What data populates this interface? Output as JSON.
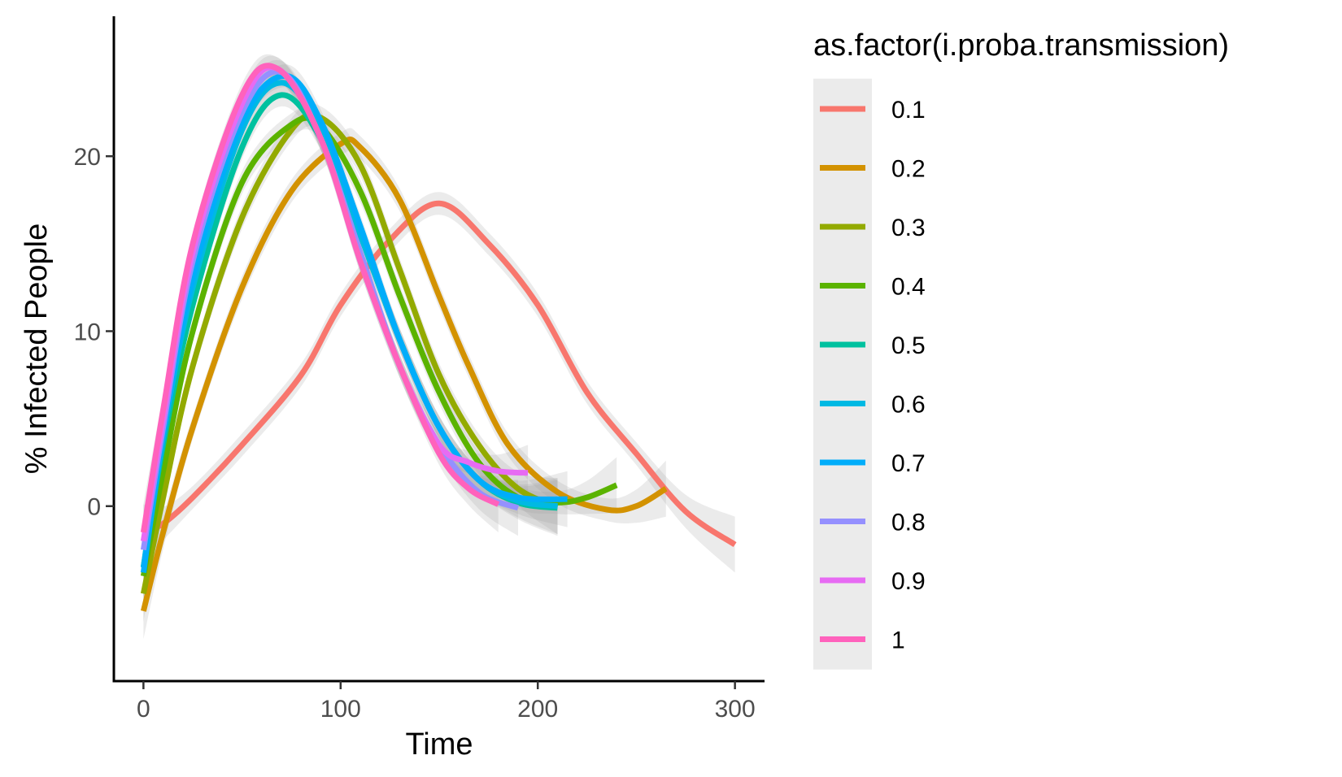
{
  "chart_data": {
    "type": "line",
    "title": "",
    "xlabel": "Time",
    "ylabel": "% Infected People",
    "xlim": [
      -15,
      315
    ],
    "ylim": [
      -10,
      28
    ],
    "xticks": [
      0,
      100,
      200,
      300
    ],
    "yticks": [
      0,
      10,
      20
    ],
    "xtick_labels": [
      "0",
      "100",
      "200",
      "300"
    ],
    "ytick_labels": [
      "0",
      "10",
      "20"
    ],
    "grid": false,
    "confidence_band": true,
    "legend": {
      "title": "as.factor(i.proba.transmission)",
      "position": "right"
    },
    "series": [
      {
        "name": "0.1",
        "color": "#F8766D",
        "x": [
          0,
          10,
          25,
          50,
          80,
          100,
          125,
          150,
          175,
          200,
          225,
          250,
          275,
          300
        ],
        "y": [
          -1.5,
          -1.0,
          0.5,
          3.5,
          7.5,
          11.5,
          15.2,
          17.3,
          15.0,
          11.5,
          6.5,
          3.0,
          -0.3,
          -2.2
        ]
      },
      {
        "name": "0.2",
        "color": "#D39200",
        "x": [
          0,
          10,
          25,
          50,
          75,
          100,
          110,
          130,
          150,
          165,
          185,
          210,
          235,
          250,
          265
        ],
        "y": [
          -6.0,
          -1.5,
          4.5,
          12.5,
          18.0,
          20.7,
          20.5,
          17.5,
          12.0,
          8.0,
          3.5,
          0.8,
          -0.2,
          0.0,
          1.0
        ]
      },
      {
        "name": "0.3",
        "color": "#93AA00",
        "x": [
          0,
          10,
          25,
          50,
          75,
          90,
          110,
          130,
          150,
          170,
          190,
          210
        ],
        "y": [
          -5.0,
          0.5,
          8.0,
          16.5,
          21.5,
          22.2,
          19.5,
          13.5,
          7.5,
          3.5,
          1.0,
          0.0
        ]
      },
      {
        "name": "0.4",
        "color": "#5BB300",
        "x": [
          0,
          10,
          25,
          50,
          75,
          90,
          110,
          130,
          150,
          170,
          190,
          210,
          225,
          240
        ],
        "y": [
          -4.0,
          2.0,
          10.0,
          18.5,
          21.8,
          21.7,
          18.0,
          12.0,
          6.5,
          2.5,
          0.5,
          0.2,
          0.5,
          1.2
        ]
      },
      {
        "name": "0.5",
        "color": "#00C19F",
        "x": [
          0,
          10,
          25,
          50,
          70,
          90,
          110,
          130,
          150,
          170,
          190,
          210
        ],
        "y": [
          -3.5,
          3.5,
          11.5,
          20.5,
          23.5,
          21.0,
          15.5,
          9.5,
          4.5,
          1.5,
          0.2,
          -0.1
        ]
      },
      {
        "name": "0.6",
        "color": "#00B9E3",
        "x": [
          0,
          10,
          25,
          50,
          70,
          90,
          110,
          130,
          150,
          170,
          190,
          210
        ],
        "y": [
          -3.5,
          4.0,
          12.5,
          21.5,
          24.2,
          21.5,
          15.5,
          9.5,
          4.5,
          1.5,
          0.3,
          0.0
        ]
      },
      {
        "name": "0.7",
        "color": "#00ADFA",
        "x": [
          0,
          10,
          25,
          50,
          72,
          90,
          110,
          130,
          150,
          170,
          190,
          215
        ],
        "y": [
          -3.8,
          4.0,
          13.0,
          22.0,
          24.6,
          22.0,
          16.0,
          9.5,
          4.5,
          1.5,
          0.5,
          0.4
        ]
      },
      {
        "name": "0.8",
        "color": "#9590FF",
        "x": [
          0,
          10,
          25,
          50,
          70,
          90,
          110,
          130,
          150,
          170,
          190
        ],
        "y": [
          -2.5,
          4.5,
          14.0,
          22.5,
          24.8,
          21.0,
          14.5,
          8.0,
          3.5,
          0.8,
          -0.1
        ]
      },
      {
        "name": "0.9",
        "color": "#E76BF3",
        "x": [
          0,
          10,
          25,
          50,
          68,
          90,
          110,
          130,
          150,
          165,
          180,
          195
        ],
        "y": [
          -2.0,
          5.0,
          14.5,
          23.0,
          25.0,
          21.0,
          14.0,
          8.0,
          3.5,
          2.5,
          2.0,
          1.9
        ]
      },
      {
        "name": "1",
        "color": "#FF62BC",
        "x": [
          0,
          10,
          25,
          50,
          68,
          90,
          110,
          130,
          150,
          165,
          180
        ],
        "y": [
          -1.5,
          5.5,
          15.0,
          23.5,
          25.0,
          21.0,
          14.0,
          8.0,
          3.0,
          1.0,
          0.1
        ]
      }
    ]
  }
}
